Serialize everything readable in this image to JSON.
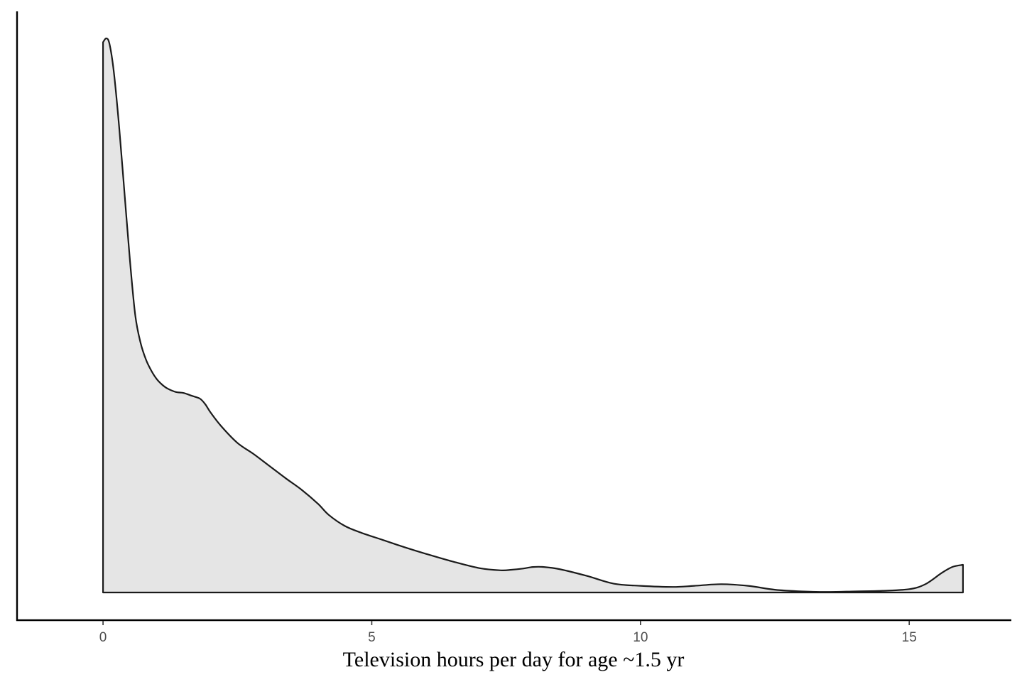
{
  "chart_data": {
    "type": "area",
    "subtype": "density",
    "title": "",
    "xlabel": "Television hours per day for age ~1.5 yr",
    "ylabel": "",
    "xlim": [
      -1.6,
      16.9
    ],
    "ylim": [
      0,
      1
    ],
    "x_ticks": [
      0,
      5,
      10,
      15
    ],
    "x_tick_labels": [
      "0",
      "5",
      "10",
      "15"
    ],
    "y_ticks_shown": false,
    "grid": false,
    "legend": "none",
    "fill_color": "#e5e5e5",
    "line_color": "#1a1a1a",
    "series": [
      {
        "x": [
          0.0,
          0.06,
          0.12,
          0.2,
          0.3,
          0.4,
          0.5,
          0.6,
          0.7,
          0.8,
          0.9,
          1.0,
          1.1,
          1.2,
          1.35,
          1.5,
          1.65,
          1.8,
          1.9,
          2.0,
          2.2,
          2.5,
          2.8,
          3.1,
          3.4,
          3.7,
          4.0,
          4.2,
          4.5,
          4.8,
          5.2,
          5.6,
          6.0,
          6.5,
          7.0,
          7.4,
          7.6,
          7.8,
          8.0,
          8.2,
          8.5,
          9.0,
          9.5,
          10.0,
          10.6,
          11.0,
          11.5,
          12.0,
          12.5,
          13.0,
          13.5,
          14.0,
          14.5,
          15.0,
          15.3,
          15.6,
          15.8,
          16.0
        ],
        "y": [
          0.993,
          1.0,
          0.99,
          0.94,
          0.84,
          0.72,
          0.6,
          0.5,
          0.45,
          0.42,
          0.4,
          0.385,
          0.375,
          0.368,
          0.362,
          0.36,
          0.355,
          0.35,
          0.34,
          0.325,
          0.3,
          0.27,
          0.25,
          0.228,
          0.206,
          0.185,
          0.16,
          0.14,
          0.12,
          0.108,
          0.095,
          0.082,
          0.07,
          0.056,
          0.044,
          0.04,
          0.041,
          0.043,
          0.046,
          0.046,
          0.042,
          0.03,
          0.016,
          0.012,
          0.01,
          0.012,
          0.015,
          0.012,
          0.005,
          0.002,
          0.001,
          0.002,
          0.003,
          0.006,
          0.015,
          0.035,
          0.046,
          0.05
        ]
      }
    ]
  }
}
